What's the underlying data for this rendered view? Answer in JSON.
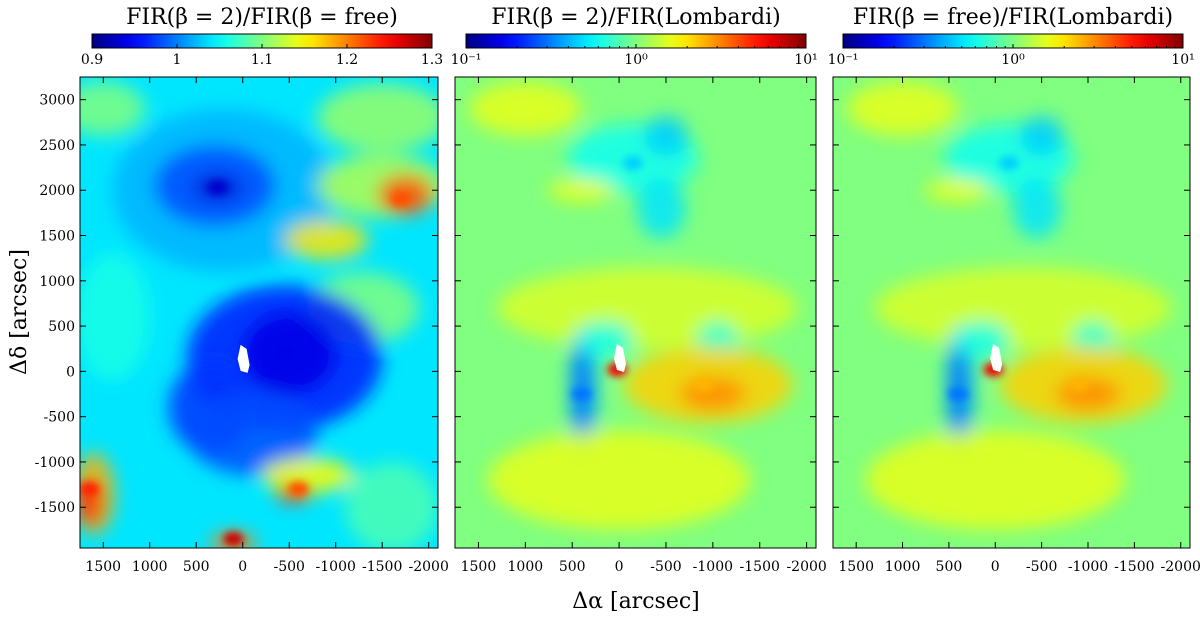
{
  "figure": {
    "xlabel": "Δα [arcsec]",
    "ylabel": "Δδ [arcsec]"
  },
  "chart_data": [
    {
      "type": "heatmap",
      "title": "FIR(β = 2)/FIR(β = free)",
      "colormap": "jet",
      "colorbar": {
        "scale": "linear",
        "range": [
          0.9,
          1.3
        ],
        "ticks": [
          0.9,
          1.0,
          1.1,
          1.2,
          1.3
        ],
        "tick_labels": [
          "0.9",
          "1",
          "1.1",
          "1.2",
          "1.3"
        ]
      },
      "x_range": [
        1750,
        -2100
      ],
      "y_range": [
        -1950,
        3250
      ],
      "x_ticks": [
        1500,
        1000,
        500,
        0,
        -500,
        -1000,
        -1500,
        -2000
      ],
      "x_tick_labels": [
        "1500",
        "1000",
        "500",
        "0",
        "-500",
        "-1000",
        "-1500",
        "-2000"
      ],
      "y_ticks": [
        -1500,
        -1000,
        -500,
        0,
        500,
        1000,
        1500,
        2000,
        2500,
        3000
      ],
      "y_tick_labels": [
        "-1500",
        "-1000",
        "-500",
        "0",
        "500",
        "1000",
        "1500",
        "2000",
        "2500",
        "3000"
      ],
      "features": [
        {
          "kind": "low-ratio region (deep blue)",
          "center": [
            270,
            2030
          ],
          "value": 0.93
        },
        {
          "kind": "low-ratio region (deep blue)",
          "center": [
            -450,
            200
          ],
          "value": 0.94
        },
        {
          "kind": "high-ratio region (orange/red)",
          "center": [
            -1700,
            1900
          ],
          "value": 1.22
        },
        {
          "kind": "high-ratio region (orange/red)",
          "center": [
            -600,
            -1300
          ],
          "value": 1.22
        },
        {
          "kind": "high-ratio region (orange/red)",
          "center": [
            1650,
            -1300
          ],
          "value": 1.24
        },
        {
          "kind": "high-ratio region (orange/red)",
          "center": [
            100,
            -1850
          ],
          "value": 1.27
        },
        {
          "kind": "masked pixels (white)",
          "center": [
            -20,
            50
          ],
          "value": null
        }
      ]
    },
    {
      "type": "heatmap",
      "title": "FIR(β = 2)/FIR(Lombardi)",
      "colormap": "jet",
      "colorbar": {
        "scale": "log",
        "range": [
          0.1,
          10
        ],
        "ticks": [
          0.1,
          1,
          10
        ],
        "tick_labels": [
          "10⁻¹",
          "10⁰",
          "10¹"
        ]
      },
      "x_range": [
        1750,
        -2100
      ],
      "y_range": [
        -1950,
        3250
      ],
      "x_ticks": [
        1500,
        1000,
        500,
        0,
        -500,
        -1000,
        -1500,
        -2000
      ],
      "x_tick_labels": [
        "1500",
        "1000",
        "500",
        "0",
        "-500",
        "-1000",
        "-1500",
        "-2000"
      ],
      "y_ticks": [
        -1500,
        -1000,
        -500,
        0,
        500,
        1000,
        1500,
        2000,
        2500,
        3000
      ],
      "features": [
        {
          "kind": "low-ratio filament (blue)",
          "center": [
            -150,
            2300
          ],
          "value": 0.45
        },
        {
          "kind": "low-ratio filament (deep blue)",
          "center": [
            400,
            -250
          ],
          "value": 0.3
        },
        {
          "kind": "high-ratio region (yellow/orange)",
          "center": [
            -900,
            -150
          ],
          "value": 2.5
        },
        {
          "kind": "peak (red)",
          "center": [
            20,
            20
          ],
          "value": 6.0
        },
        {
          "kind": "masked pixels (white)",
          "center": [
            -20,
            60
          ],
          "value": null
        }
      ]
    },
    {
      "type": "heatmap",
      "title": "FIR(β = free)/FIR(Lombardi)",
      "colormap": "jet",
      "colorbar": {
        "scale": "log",
        "range": [
          0.1,
          10
        ],
        "ticks": [
          0.1,
          1,
          10
        ],
        "tick_labels": [
          "10⁻¹",
          "10⁰",
          "10¹"
        ]
      },
      "x_range": [
        1750,
        -2100
      ],
      "y_range": [
        -1950,
        3250
      ],
      "x_ticks": [
        1500,
        1000,
        500,
        0,
        -500,
        -1000,
        -1500,
        -2000
      ],
      "x_tick_labels": [
        "1500",
        "1000",
        "500",
        "0",
        "-500",
        "-1000",
        "-1500",
        "-2000"
      ],
      "y_ticks": [
        -1500,
        -1000,
        -500,
        0,
        500,
        1000,
        1500,
        2000,
        2500,
        3000
      ],
      "features": [
        {
          "kind": "low-ratio filament (blue)",
          "center": [
            -150,
            2300
          ],
          "value": 0.45
        },
        {
          "kind": "low-ratio filament (deep blue)",
          "center": [
            400,
            -250
          ],
          "value": 0.3
        },
        {
          "kind": "high-ratio region (yellow/orange)",
          "center": [
            -900,
            -150
          ],
          "value": 2.5
        },
        {
          "kind": "peak (red)",
          "center": [
            20,
            20
          ],
          "value": 6.0
        },
        {
          "kind": "masked pixels (white)",
          "center": [
            -20,
            60
          ],
          "value": null
        }
      ]
    }
  ]
}
